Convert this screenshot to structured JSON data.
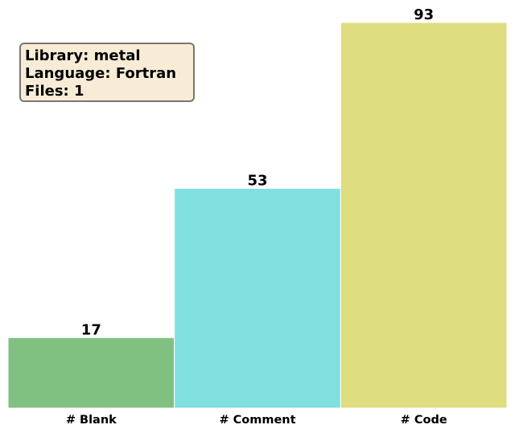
{
  "chart_data": {
    "type": "bar",
    "categories": [
      "# Blank",
      "# Comment",
      "# Code"
    ],
    "values": [
      17,
      53,
      93
    ],
    "colors": [
      "#80c080",
      "#7fe0df",
      "#dedd7f"
    ],
    "title": "",
    "xlabel": "",
    "ylabel": "",
    "ylim": [
      0,
      93
    ],
    "grid": false,
    "annotation": {
      "lines": [
        "Library: metal",
        "Language: Fortran",
        "Files: 1"
      ],
      "placement": "top-left"
    }
  }
}
